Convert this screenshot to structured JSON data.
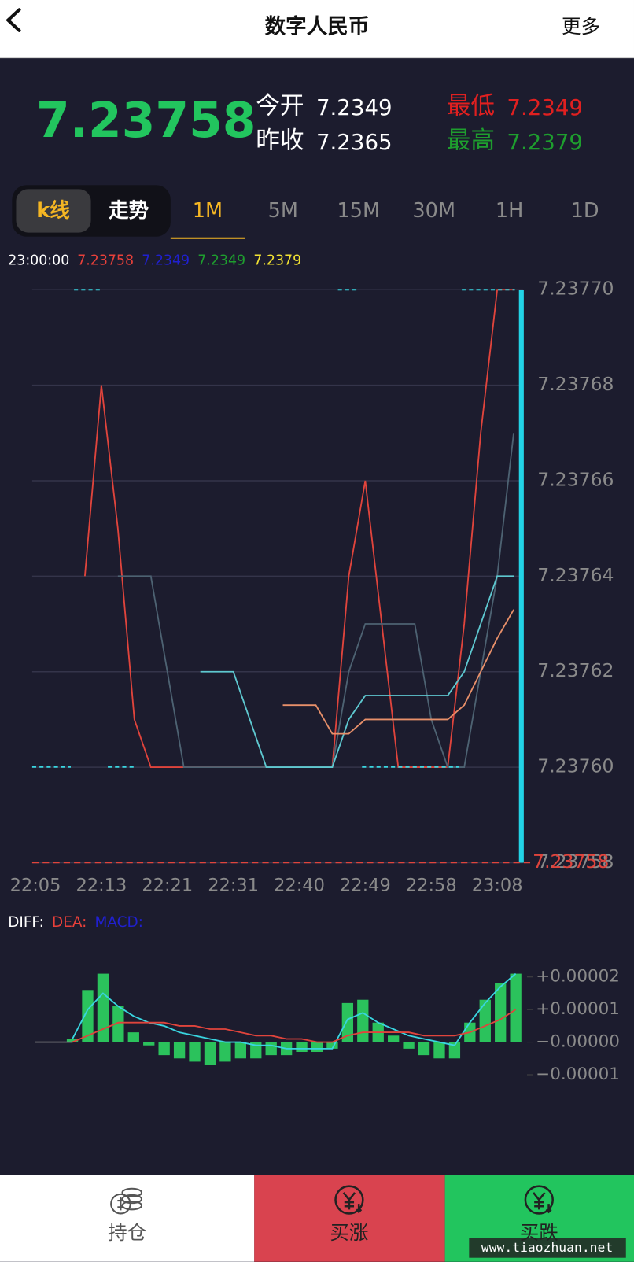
{
  "header": {
    "title": "数字人民币",
    "more": "更多"
  },
  "quote": {
    "price": "7.23758",
    "open_label": "今开",
    "open": "7.2349",
    "prev_close_label": "昨收",
    "prev_close": "7.2365",
    "low_label": "最低",
    "low": "7.2349",
    "high_label": "最高",
    "high": "7.2379"
  },
  "tabs": {
    "modes": [
      "k线",
      "走势"
    ],
    "periods": [
      "1M",
      "5M",
      "15M",
      "30M",
      "1H",
      "1D"
    ]
  },
  "legend": {
    "time": "23:00:00",
    "values": [
      "7.23758",
      "7.2349",
      "7.2349",
      "7.2379"
    ],
    "colors": [
      "#e8403a",
      "#2020d0",
      "#1e9e2e",
      "#f2e232"
    ]
  },
  "chart_data": [
    {
      "type": "line",
      "categories": [
        "22:05",
        null,
        null,
        null,
        "22:13",
        null,
        null,
        null,
        "22:21",
        null,
        null,
        null,
        "22:31",
        null,
        null,
        null,
        "22:40",
        null,
        null,
        null,
        "22:49",
        null,
        null,
        null,
        "22:58",
        null,
        null,
        null,
        "23:08",
        null
      ],
      "series": [
        {
          "color": "#e0443c",
          "values": [
            null,
            null,
            null,
            7.23764,
            7.23768,
            7.23765,
            7.23761,
            7.2376,
            7.2376,
            7.2376,
            7.2376,
            7.2376,
            7.2376,
            7.2376,
            7.2376,
            7.2376,
            7.2376,
            7.2376,
            7.2376,
            7.23764,
            7.23766,
            7.23763,
            7.2376,
            7.2376,
            7.2376,
            7.2376,
            7.23763,
            7.23767,
            7.2377,
            7.2377
          ]
        },
        {
          "color": "#4d6272",
          "values": [
            null,
            null,
            null,
            null,
            null,
            7.23764,
            7.23764,
            7.23764,
            7.23762,
            7.2376,
            7.2376,
            7.2376,
            7.2376,
            7.2376,
            7.2376,
            7.2376,
            7.2376,
            7.2376,
            7.2376,
            7.23762,
            7.23763,
            7.23763,
            7.23763,
            7.23763,
            7.23761,
            7.2376,
            7.2376,
            7.23762,
            7.23764,
            7.23767
          ]
        },
        {
          "color": "#5ec8d0",
          "values": [
            null,
            null,
            null,
            null,
            null,
            null,
            null,
            null,
            null,
            null,
            7.23762,
            7.23762,
            7.23762,
            7.23761,
            7.2376,
            7.2376,
            7.2376,
            7.2376,
            7.2376,
            7.23761,
            7.237615,
            7.237615,
            7.237615,
            7.237615,
            7.237615,
            7.237615,
            7.23762,
            7.23763,
            7.23764,
            7.23764
          ]
        },
        {
          "color": "#e8906a",
          "values": [
            null,
            null,
            null,
            null,
            null,
            null,
            null,
            null,
            null,
            null,
            null,
            null,
            null,
            null,
            null,
            7.237613,
            7.237613,
            7.237613,
            7.237607,
            7.237607,
            7.23761,
            7.23761,
            7.23761,
            7.23761,
            7.23761,
            7.23761,
            7.237613,
            7.23762,
            7.237627,
            7.237633
          ]
        }
      ],
      "ylim": [
        7.23758,
        7.2377
      ],
      "yticks": [
        {
          "value": 7.2377,
          "label": "7.23770"
        },
        7.23768,
        7.23766,
        7.23764,
        7.23762,
        {
          "value": 7.2376,
          "label": "7.23760"
        },
        7.23758
      ],
      "grid": true,
      "price_line": {
        "value": 7.23758,
        "label": "7.23758",
        "color": "#e0443c"
      }
    },
    {
      "type": "macd",
      "series": [
        {
          "name": "DIFF:",
          "legend_color": "#ffffff",
          "color": "#39d5e0",
          "values": [
            1e-06,
            1e-05,
            1.5e-05,
            1.1e-05,
            8e-06,
            6e-06,
            5e-06,
            3e-06,
            2e-06,
            1e-06,
            0,
            0,
            -1e-06,
            -1e-06,
            -2e-06,
            -2e-06,
            -2e-06,
            -2e-06,
            7e-06,
            9e-06,
            6e-06,
            4e-06,
            2e-06,
            1e-06,
            0,
            -1e-06,
            6e-06,
            1.2e-05,
            1.7e-05,
            2.1e-05
          ]
        },
        {
          "name": "DEA:",
          "legend_color": "#e8403a",
          "color": "#e0443c",
          "values": [
            0,
            2e-06,
            4e-06,
            6e-06,
            6e-06,
            6e-06,
            6e-06,
            5e-06,
            5e-06,
            4e-06,
            4e-06,
            3e-06,
            2e-06,
            2e-06,
            1e-06,
            1e-06,
            0,
            0,
            2e-06,
            3e-06,
            3e-06,
            3e-06,
            3e-06,
            2e-06,
            2e-06,
            2e-06,
            3e-06,
            5e-06,
            7e-06,
            1e-05
          ]
        },
        {
          "name": "MACD:",
          "legend_color": "#2020d0",
          "color": "#2bc25c",
          "values": [
            1e-06,
            1.6e-05,
            2.1e-05,
            1.1e-05,
            3e-06,
            -1e-06,
            -4e-06,
            -5e-06,
            -6e-06,
            -7e-06,
            -6e-06,
            -5e-06,
            -5e-06,
            -4e-06,
            -4e-06,
            -3e-06,
            -3e-06,
            -2e-06,
            1.2e-05,
            1.3e-05,
            6e-06,
            2e-06,
            -2e-06,
            -4e-06,
            -5e-06,
            -5e-06,
            6e-06,
            1.3e-05,
            1.8e-05,
            2.1e-05
          ]
        }
      ],
      "ylim": [
        -1e-05,
        2e-05
      ],
      "yticks": [
        {
          "value": 2e-05,
          "label": "+0.00002"
        },
        {
          "value": 1e-05,
          "label": "+0.00001"
        },
        {
          "value": 0,
          "label": "−0.00000"
        },
        {
          "value": -1e-05,
          "label": "−0.00001"
        }
      ]
    }
  ],
  "footer": {
    "buttons": [
      "持仓",
      "买涨",
      "买跌"
    ]
  },
  "watermark": "www.tiaozhuan.net"
}
